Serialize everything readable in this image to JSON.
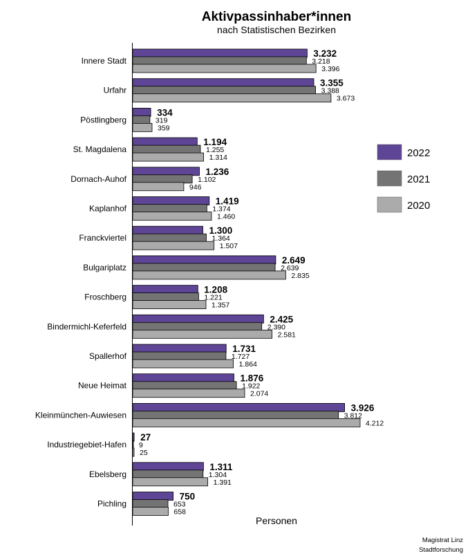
{
  "chart_data": {
    "type": "bar",
    "orientation": "horizontal",
    "title": "Aktivpassinhaber*innen",
    "subtitle": "nach Statistischen Bezirken",
    "xlabel": "Personen",
    "ylabel": "",
    "xlim": [
      0,
      4500
    ],
    "grid": false,
    "legend_position": "right",
    "categories": [
      "Innere Stadt",
      "Urfahr",
      "Pöstlingberg",
      "St. Magdalena",
      "Dornach-Auhof",
      "Kaplanhof",
      "Franckviertel",
      "Bulgariplatz",
      "Froschberg",
      "Bindermichl-Keferfeld",
      "Spallerhof",
      "Neue Heimat",
      "Kleinmünchen-Auwiesen",
      "Industriegebiet-Hafen",
      "Ebelsberg",
      "Pichling"
    ],
    "series": [
      {
        "name": "2022",
        "color": "#5e4596",
        "values": [
          3232,
          3355,
          334,
          1194,
          1236,
          1419,
          1300,
          2649,
          1208,
          2425,
          1731,
          1876,
          3926,
          27,
          1311,
          750
        ],
        "labels": [
          "3.232",
          "3.355",
          "334",
          "1.194",
          "1.236",
          "1.419",
          "1.300",
          "2.649",
          "1.208",
          "2.425",
          "1.731",
          "1.876",
          "3.926",
          "27",
          "1.311",
          "750"
        ]
      },
      {
        "name": "2021",
        "color": "#747474",
        "values": [
          3218,
          3388,
          319,
          1255,
          1102,
          1374,
          1364,
          2639,
          1221,
          2390,
          1727,
          1922,
          3812,
          9,
          1304,
          653
        ],
        "labels": [
          "3.218",
          "3.388",
          "319",
          "1.255",
          "1.102",
          "1.374",
          "1.364",
          "2.639",
          "1.221",
          "2.390",
          "1.727",
          "1.922",
          "3.812",
          "9",
          "1.304",
          "653"
        ]
      },
      {
        "name": "2020",
        "color": "#ababab",
        "values": [
          3396,
          3673,
          359,
          1314,
          946,
          1460,
          1507,
          2835,
          1357,
          2581,
          1864,
          2074,
          4212,
          25,
          1391,
          658
        ],
        "labels": [
          "3.396",
          "3.673",
          "359",
          "1.314",
          "946",
          "1.460",
          "1.507",
          "2.835",
          "1.357",
          "2.581",
          "1.864",
          "2.074",
          "4.212",
          "25",
          "1.391",
          "658"
        ]
      }
    ]
  },
  "credit": {
    "line1": "Magistrat Linz",
    "line2": "Stadtforschung"
  }
}
